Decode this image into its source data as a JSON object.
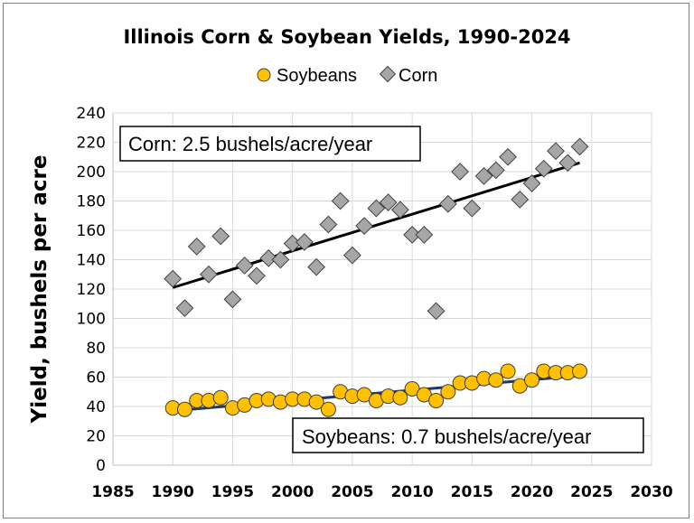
{
  "chart_data": {
    "type": "scatter",
    "title": "Illinois Corn & Soybean Yields, 1990-2024",
    "ylabel": "Yield, bushels per acre",
    "xlabel": "",
    "xlim": [
      1985,
      2030
    ],
    "ylim": [
      0,
      240
    ],
    "xticks": [
      1985,
      1990,
      1995,
      2000,
      2005,
      2010,
      2015,
      2020,
      2025,
      2030
    ],
    "yticks": [
      0,
      20,
      40,
      60,
      80,
      100,
      120,
      140,
      160,
      180,
      200,
      220,
      240
    ],
    "grid": true,
    "legend_position": "top",
    "series": [
      {
        "name": "Soybeans",
        "marker": "circle",
        "color": "#ffc000",
        "edge_color": "#404040",
        "x": [
          1990,
          1991,
          1992,
          1993,
          1994,
          1995,
          1996,
          1997,
          1998,
          1999,
          2000,
          2001,
          2002,
          2003,
          2004,
          2005,
          2006,
          2007,
          2008,
          2009,
          2010,
          2011,
          2012,
          2013,
          2014,
          2015,
          2016,
          2017,
          2018,
          2019,
          2020,
          2021,
          2022,
          2023,
          2024
        ],
        "y": [
          39,
          38,
          44,
          44,
          46,
          39,
          41,
          44,
          45,
          43,
          45,
          45,
          43,
          38,
          50,
          47,
          48,
          44,
          47,
          46,
          52,
          48,
          44,
          50,
          56,
          56,
          59,
          58,
          64,
          54,
          58,
          64,
          63,
          63,
          64
        ]
      },
      {
        "name": "Corn",
        "marker": "diamond",
        "color": "#a6a6a6",
        "edge_color": "#404040",
        "x": [
          1990,
          1991,
          1992,
          1993,
          1994,
          1995,
          1996,
          1997,
          1998,
          1999,
          2000,
          2001,
          2002,
          2003,
          2004,
          2005,
          2006,
          2007,
          2008,
          2009,
          2010,
          2011,
          2012,
          2013,
          2014,
          2015,
          2016,
          2017,
          2018,
          2019,
          2020,
          2021,
          2022,
          2023,
          2024
        ],
        "y": [
          127,
          107,
          149,
          130,
          156,
          113,
          136,
          129,
          141,
          140,
          151,
          152,
          135,
          164,
          180,
          143,
          163,
          175,
          179,
          174,
          157,
          157,
          105,
          178,
          200,
          175,
          197,
          201,
          210,
          181,
          192,
          202,
          214,
          206,
          217
        ]
      }
    ],
    "trendlines": [
      {
        "series": "Corn",
        "color": "#000000",
        "x": [
          1990,
          2024
        ],
        "y": [
          121,
          206
        ]
      },
      {
        "series": "Soybeans",
        "color": "#1f3864",
        "x": [
          1990,
          2024
        ],
        "y": [
          37,
          61
        ]
      }
    ],
    "annotations": [
      {
        "text": "Corn: 2.5 bushels/acre/year"
      },
      {
        "text": "Soybeans: 0.7 bushels/acre/year"
      }
    ]
  }
}
